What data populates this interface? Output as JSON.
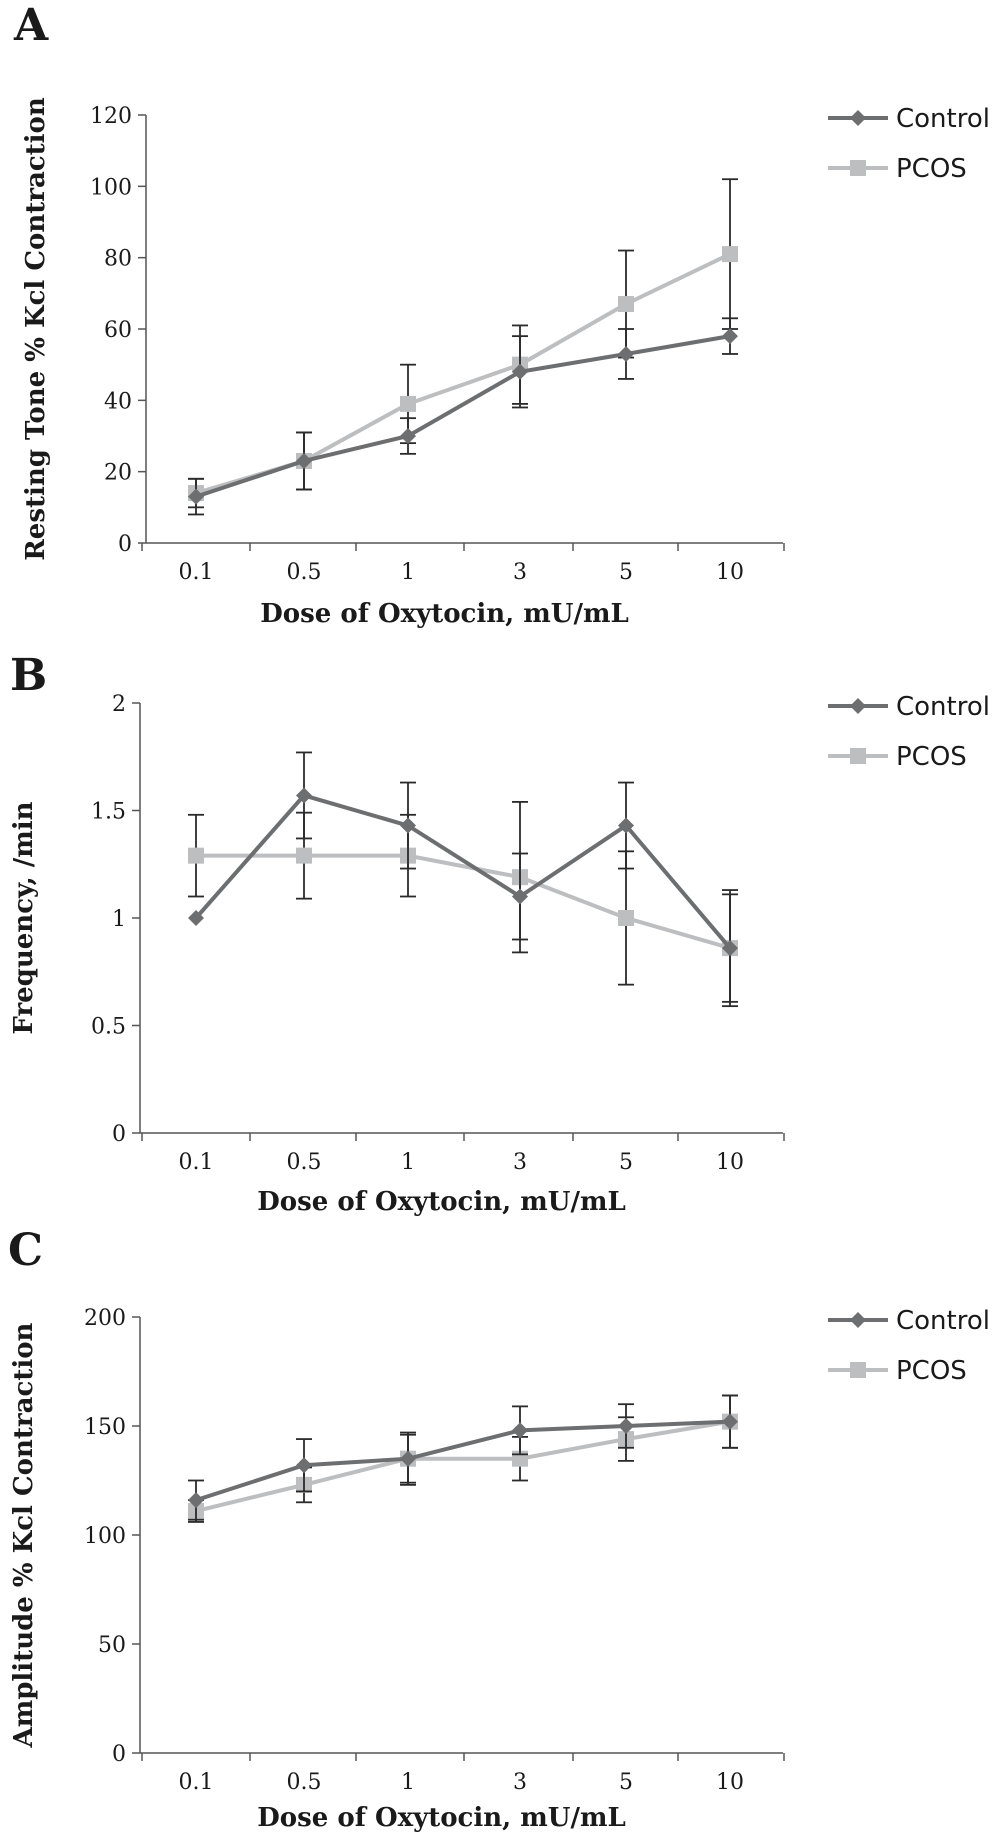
{
  "colors": {
    "Control": "#6d6e70",
    "PCOS": "#bcbec0",
    "axis": "#555555",
    "text": "#1a1a1a"
  },
  "chart_data": [
    {
      "panel_label": "A",
      "type": "line",
      "categories": [
        "0.1",
        "0.5",
        "1",
        "3",
        "5",
        "10"
      ],
      "xlabel": "Dose of Oxytocin, mU/mL",
      "ylabel": "Resting Tone % Kcl Contraction",
      "ylim": [
        0,
        120
      ],
      "yticks": [
        "0",
        "20",
        "40",
        "60",
        "80",
        "100",
        "120"
      ],
      "grid": false,
      "legend_position": "right",
      "series": [
        {
          "name": "Control",
          "marker": "diamond",
          "values": [
            13,
            23,
            30,
            48,
            53,
            58
          ],
          "errors": [
            5,
            8,
            5,
            10,
            7,
            5
          ]
        },
        {
          "name": "PCOS",
          "marker": "square",
          "values": [
            14,
            23,
            39,
            50,
            67,
            81
          ],
          "errors": [
            4,
            8,
            11,
            11,
            15,
            21
          ]
        }
      ]
    },
    {
      "panel_label": "B",
      "type": "line",
      "categories": [
        "0.1",
        "0.5",
        "1",
        "3",
        "5",
        "10"
      ],
      "xlabel": "Dose of Oxytocin, mU/mL",
      "ylabel": "Frequency, /min",
      "ylim": [
        0,
        2
      ],
      "yticks": [
        "0",
        "0.5",
        "1",
        "1.5",
        "2"
      ],
      "grid": false,
      "legend_position": "right",
      "series": [
        {
          "name": "Control",
          "marker": "diamond",
          "values": [
            1.0,
            1.57,
            1.43,
            1.1,
            1.43,
            0.86
          ],
          "errors": [
            0,
            0.2,
            0.2,
            0.2,
            0.2,
            0.25
          ]
        },
        {
          "name": "PCOS",
          "marker": "square",
          "values": [
            1.29,
            1.29,
            1.29,
            1.19,
            1.0,
            0.86
          ],
          "errors": [
            0.19,
            0.2,
            0.19,
            0.35,
            0.31,
            0.27
          ]
        }
      ]
    },
    {
      "panel_label": "C",
      "type": "line",
      "categories": [
        "0.1",
        "0.5",
        "1",
        "3",
        "5",
        "10"
      ],
      "xlabel": "Dose of Oxytocin, mU/mL",
      "ylabel": "Amplitude % Kcl Contraction",
      "ylim": [
        0,
        200
      ],
      "yticks": [
        "0",
        "50",
        "100",
        "150",
        "200"
      ],
      "grid": false,
      "legend_position": "right",
      "series": [
        {
          "name": "Control",
          "marker": "diamond",
          "values": [
            116,
            132,
            135,
            148,
            150,
            152
          ],
          "errors": [
            9,
            12,
            12,
            11,
            10,
            12
          ]
        },
        {
          "name": "PCOS",
          "marker": "square",
          "values": [
            111,
            123,
            135,
            135,
            144,
            152
          ],
          "errors": [
            5,
            8,
            11,
            10,
            10,
            12
          ]
        }
      ]
    }
  ]
}
